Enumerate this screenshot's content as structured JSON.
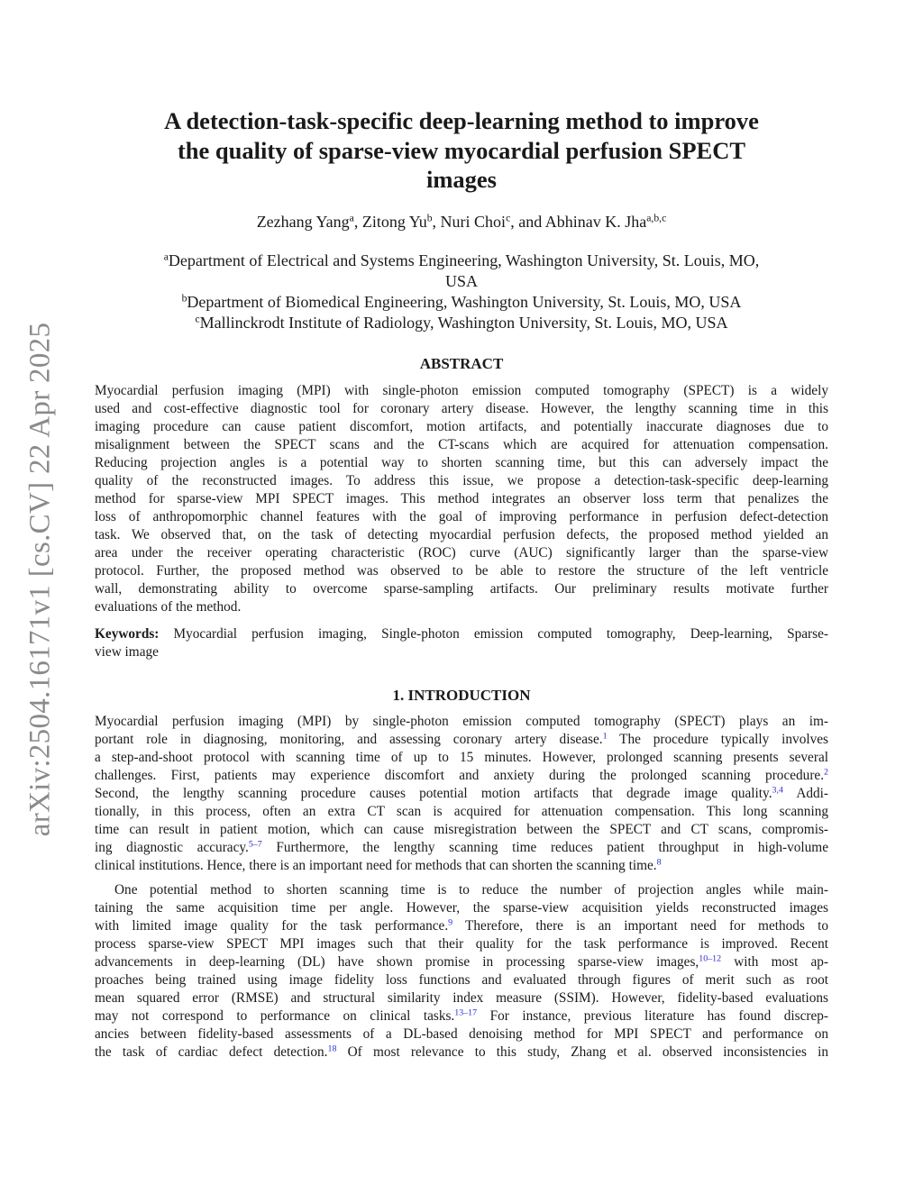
{
  "sidebar_stamp": "arXiv:2504.16171v1  [cs.CV]  22 Apr 2025",
  "title_lines": [
    "A detection-task-specific deep-learning method to improve",
    "the quality of sparse-view myocardial perfusion SPECT",
    "images"
  ],
  "authors": [
    [
      "Zezhang Yang",
      {
        "sup": "a"
      },
      ", Zitong Yu",
      {
        "sup": "b"
      },
      ", Nuri Choi",
      {
        "sup": "c"
      },
      ", and Abhinav K. Jha",
      {
        "sup": "a,b,c"
      }
    ]
  ],
  "affiliations": [
    [
      {
        "sup": "a"
      },
      "Department of Electrical and Systems Engineering, Washington University, St. Louis, MO,"
    ],
    [
      "USA"
    ],
    [
      {
        "sup": "b"
      },
      "Department of Biomedical Engineering, Washington University, St. Louis, MO, USA"
    ],
    [
      {
        "sup": "c"
      },
      "Mallinckrodt Institute of Radiology, Washington University, St. Louis, MO, USA"
    ]
  ],
  "abstract_heading": "ABSTRACT",
  "abstract_lines": [
    [
      "Myocardial perfusion imaging (MPI) with single-photon emission computed tomography (SPECT) is a widely"
    ],
    [
      "used and cost-effective diagnostic tool for coronary artery disease.  However, the lengthy scanning time in this"
    ],
    [
      "imaging procedure can cause patient discomfort, motion artifacts, and potentially inaccurate diagnoses due to"
    ],
    [
      "misalignment between the SPECT scans and the CT-scans which are acquired for attenuation compensation."
    ],
    [
      "Reducing projection angles is a potential way to shorten scanning time, but this can adversely impact the"
    ],
    [
      "quality of the reconstructed images.  To address this issue, we propose a detection-task-specific deep-learning"
    ],
    [
      "method for sparse-view MPI SPECT images.  This method integrates an observer loss term that penalizes the"
    ],
    [
      "loss of anthropomorphic channel features with the goal of improving performance in perfusion defect-detection"
    ],
    [
      "task.  We observed that, on the task of detecting myocardial perfusion defects, the proposed method yielded an"
    ],
    [
      "area under the receiver operating characteristic (ROC) curve (AUC) significantly larger than the sparse-view"
    ],
    [
      "protocol.  Further, the proposed method was observed to be able to restore the structure of the left ventricle"
    ],
    [
      "wall, demonstrating ability to overcome sparse-sampling artifacts.  Our preliminary results motivate further"
    ],
    [
      "evaluations of the method."
    ]
  ],
  "keywords_label": "Keywords:",
  "keywords_lines": [
    [
      " Myocardial perfusion imaging, Single-photon emission computed tomography, Deep-learning, Sparse-"
    ],
    [
      "view image"
    ]
  ],
  "intro_heading": "1. INTRODUCTION",
  "intro_p1": [
    [
      "Myocardial perfusion imaging (MPI) by single-photon emission computed tomography (SPECT) plays an im-"
    ],
    [
      "portant role in diagnosing, monitoring, and assessing coronary artery disease.",
      {
        "cite": "1"
      },
      "  The procedure typically involves"
    ],
    [
      "a step-and-shoot protocol with scanning time of up to 15 minutes. However, prolonged scanning presents several"
    ],
    [
      "challenges.  First, patients may experience discomfort and anxiety during the prolonged scanning procedure.",
      {
        "cite": "2"
      }
    ],
    [
      "Second, the lengthy scanning procedure causes potential motion artifacts that degrade image quality.",
      {
        "cite": "3,4"
      },
      "  Addi-"
    ],
    [
      "tionally, in this process, often an extra CT scan is acquired for attenuation compensation.  This long scanning"
    ],
    [
      "time can result in patient motion, which can cause misregistration between the SPECT and CT scans, compromis-"
    ],
    [
      "ing diagnostic accuracy.",
      {
        "cite": "5–7"
      },
      "  Furthermore, the lengthy scanning time reduces patient throughput in high-volume"
    ],
    [
      "clinical institutions. Hence, there is an important need for methods that can shorten the scanning time.",
      {
        "cite": "8"
      }
    ]
  ],
  "intro_p2": [
    [
      "One potential method to shorten scanning time is to reduce the number of projection angles while main-"
    ],
    [
      "taining the same acquisition time per angle.  However, the sparse-view acquisition yields reconstructed images"
    ],
    [
      "with limited image quality for the task performance.",
      {
        "cite": "9"
      },
      "  Therefore, there is an important need for methods to"
    ],
    [
      "process sparse-view SPECT MPI images such that their quality for the task performance is improved.  Recent"
    ],
    [
      "advancements in deep-learning (DL) have shown promise in processing sparse-view images,",
      {
        "cite": "10–12"
      },
      " with most ap-"
    ],
    [
      "proaches being trained using image fidelity loss functions and evaluated through figures of merit such as root"
    ],
    [
      "mean squared error (RMSE) and structural similarity index measure (SSIM). However, fidelity-based evaluations"
    ],
    [
      "may not correspond to performance on clinical tasks.",
      {
        "cite": "13–17"
      },
      "  For instance, previous literature has found discrep-"
    ],
    [
      "ancies between fidelity-based assessments of a DL-based denoising method for MPI SPECT and performance on"
    ],
    [
      "the task of cardiac defect detection.",
      {
        "cite": "18"
      },
      "  Of most relevance to this study, Zhang et al.  observed inconsistencies in"
    ]
  ],
  "colors": {
    "citation": "#2a2ad0",
    "stamp": "#8a8a8a"
  }
}
